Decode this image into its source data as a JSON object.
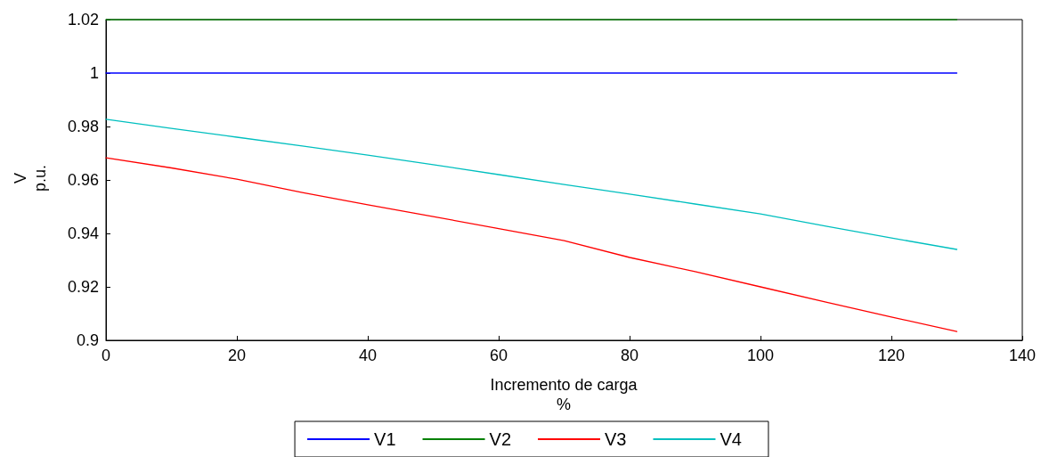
{
  "chart_data": {
    "type": "line",
    "xlabel": "Incremento de carga\n%",
    "ylabel": "V\np.u.",
    "xlim": [
      0,
      140
    ],
    "xticks": [
      0,
      20,
      40,
      60,
      80,
      100,
      120,
      140
    ],
    "ylim": [
      0.9,
      1.02
    ],
    "yticks": [
      0.9,
      0.92,
      0.94,
      0.96,
      0.98,
      1,
      1.02
    ],
    "grid": false,
    "legend": "bottom",
    "marker": "none",
    "line_style": "solid",
    "x": [
      0,
      10,
      20,
      30,
      40,
      50,
      60,
      70,
      80,
      90,
      100,
      110,
      120,
      130
    ],
    "series": [
      {
        "name": "V1",
        "color": "#0000ff",
        "values": [
          1,
          1,
          1,
          1,
          1,
          1,
          1,
          1,
          1,
          1,
          1,
          1,
          1,
          1
        ]
      },
      {
        "name": "V2",
        "color": "#008000",
        "values": [
          1.02,
          1.02,
          1.02,
          1.02,
          1.02,
          1.02,
          1.02,
          1.02,
          1.02,
          1.02,
          1.02,
          1.02,
          1.02,
          1.02
        ]
      },
      {
        "name": "V3",
        "color": "#ff0000",
        "values": [
          0.9683,
          0.9645,
          0.9603,
          0.9553,
          0.9507,
          0.9463,
          0.9418,
          0.9373,
          0.931,
          0.9257,
          0.92,
          0.9143,
          0.9087,
          0.9033
        ]
      },
      {
        "name": "V4",
        "color": "#00bfbf",
        "values": [
          0.9827,
          0.9793,
          0.976,
          0.9727,
          0.9693,
          0.9657,
          0.962,
          0.9583,
          0.9547,
          0.951,
          0.9473,
          0.9427,
          0.9383,
          0.934
        ]
      }
    ]
  }
}
